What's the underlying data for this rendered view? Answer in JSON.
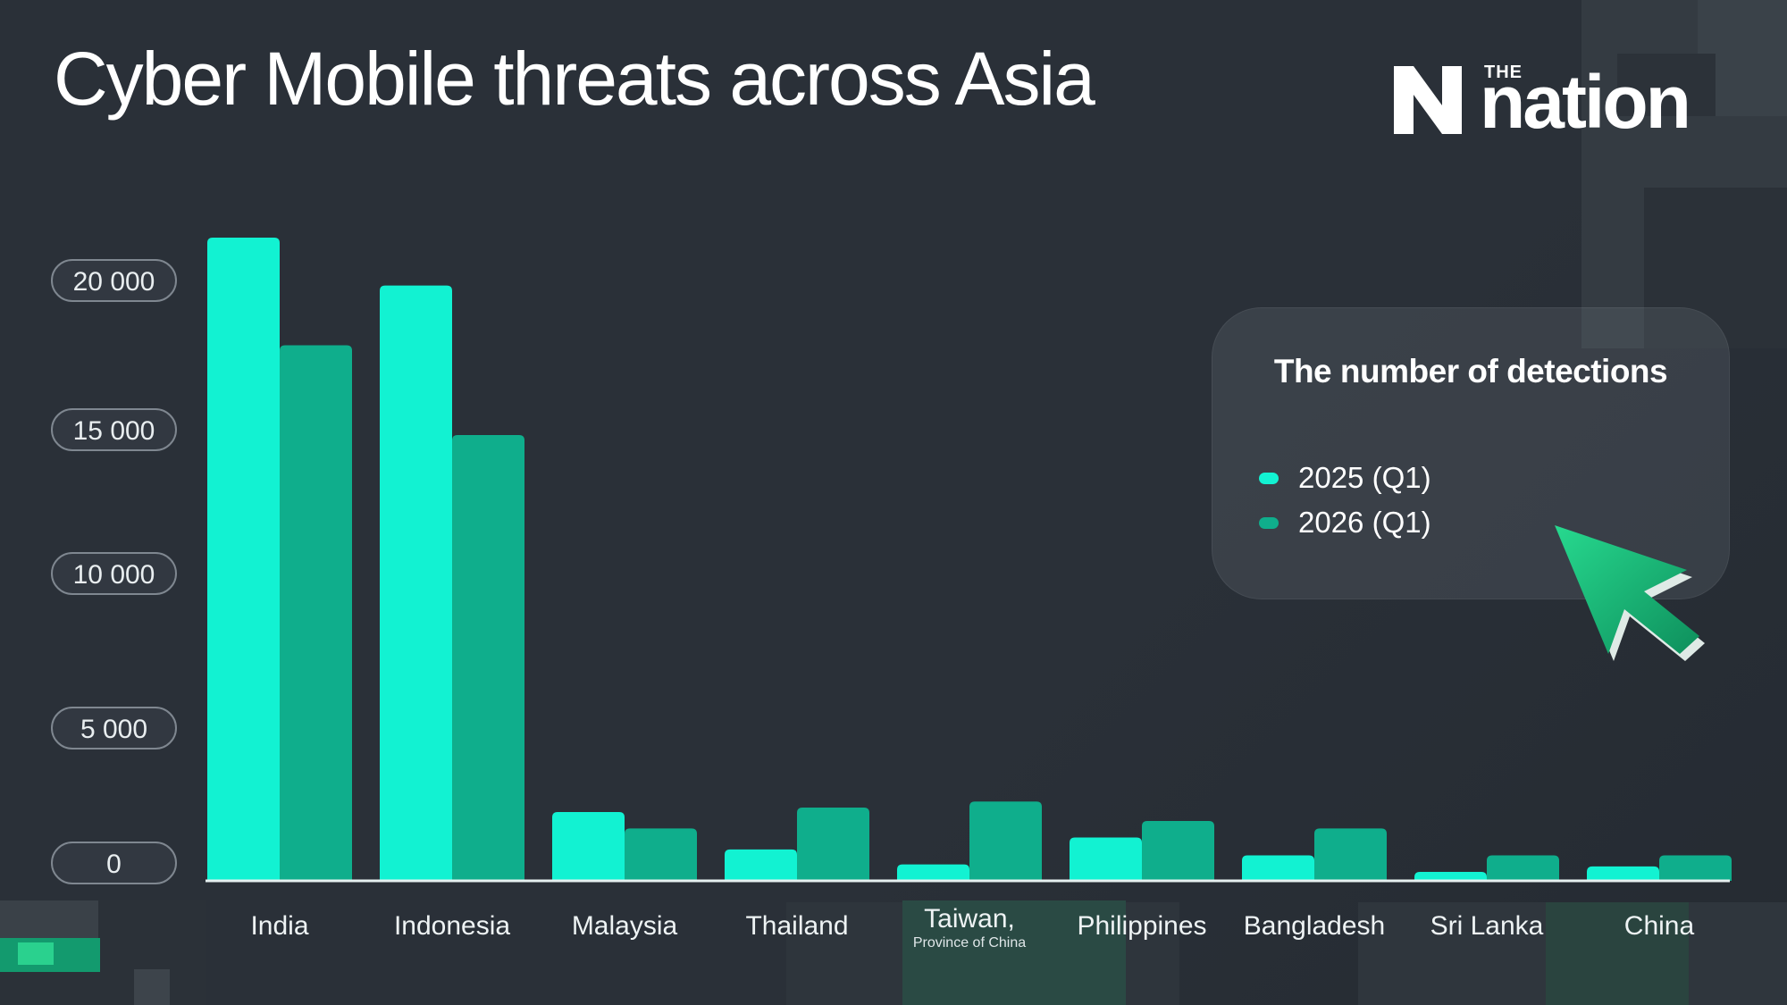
{
  "header": {
    "title": "Cyber Mobile threats across Asia"
  },
  "logo": {
    "the": "THE",
    "word": "nation"
  },
  "legend": {
    "title": "The number of detections"
  },
  "colors": {
    "series_2025": "#12f2d2",
    "series_2026": "#0fae8c",
    "axis_line": "#e6f0f0",
    "tick_pill_border": "#7f8790",
    "tick_pill_fill": "#323841",
    "background": "#2a3038"
  },
  "icons": {
    "logo_mark": "n-logo-icon",
    "cursor": "cursor-arrow-icon"
  },
  "chart_data": {
    "type": "bar",
    "title": "Cyber Mobile threats across Asia",
    "categories": [
      "India",
      "Indonesia",
      "Malaysia",
      "Thailand",
      "Taiwan,",
      "Philippines",
      "Bangladesh",
      "Sri Lanka",
      "China"
    ],
    "category_sublabels": [
      "",
      "",
      "",
      "",
      "Province of China",
      "",
      "",
      "",
      ""
    ],
    "series": [
      {
        "name": "2025 (Q1)",
        "values": [
          21500,
          19900,
          2300,
          1050,
          550,
          1450,
          850,
          300,
          480
        ]
      },
      {
        "name": "2026 (Q1)",
        "values": [
          17900,
          14900,
          1750,
          2450,
          2650,
          2000,
          1750,
          850,
          850
        ]
      }
    ],
    "yticks": [
      0,
      5000,
      10000,
      15000,
      20000
    ],
    "ytick_labels": [
      "0",
      "5 000",
      "10 000",
      "15 000",
      "20 000"
    ],
    "ylim": [
      0,
      21500
    ],
    "xlabel": "",
    "ylabel": "",
    "grid": false,
    "legend_position": "right"
  }
}
